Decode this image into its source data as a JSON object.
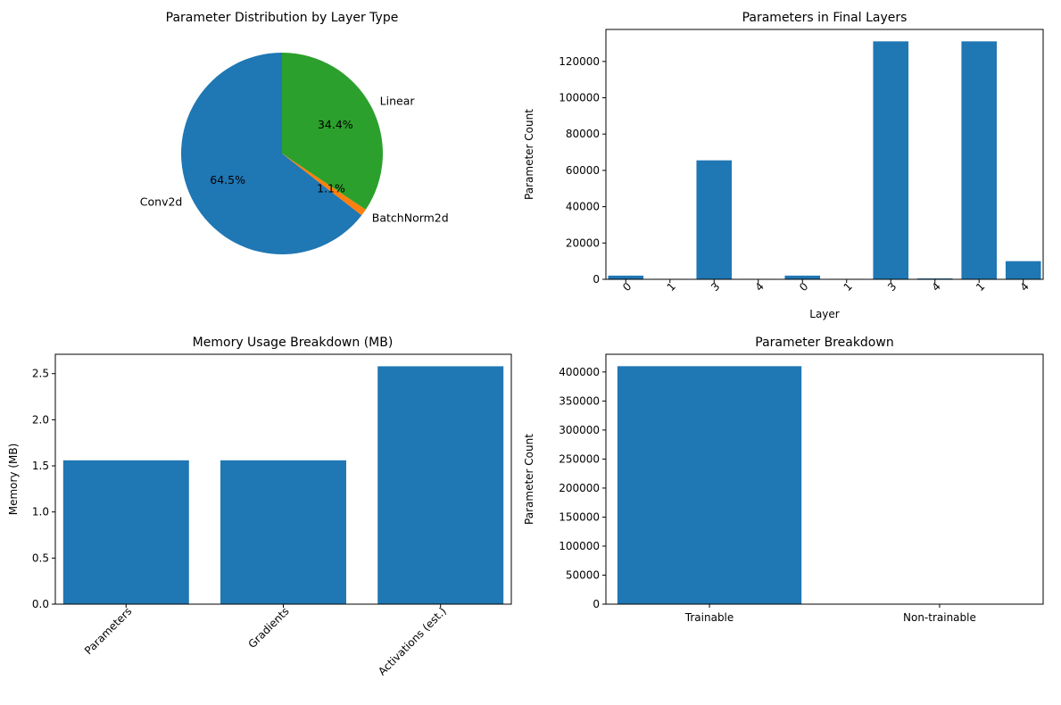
{
  "colors": {
    "blue": "#1f77b4",
    "orange": "#ff7f0e",
    "green": "#2ca02c"
  },
  "chart_data": [
    {
      "type": "pie",
      "title": "Parameter Distribution by Layer Type",
      "slices": [
        {
          "label": "Conv2d",
          "pct_label": "64.5%",
          "value": 64.5,
          "color": "#1f77b4"
        },
        {
          "label": "BatchNorm2d",
          "pct_label": "1.1%",
          "value": 1.1,
          "color": "#ff7f0e"
        },
        {
          "label": "Linear",
          "pct_label": "34.4%",
          "value": 34.4,
          "color": "#2ca02c"
        }
      ]
    },
    {
      "type": "bar",
      "title": "Parameters in Final Layers",
      "xlabel": "Layer",
      "ylabel": "Parameter Count",
      "categories": [
        "0",
        "1",
        "3",
        "4",
        "0",
        "1",
        "3",
        "4",
        "1",
        "4"
      ],
      "values": [
        2048,
        256,
        65536,
        256,
        2048,
        256,
        131072,
        512,
        131072,
        10000
      ],
      "ylim": [
        0,
        137630
      ],
      "yticks": [
        0,
        20000,
        40000,
        60000,
        80000,
        100000,
        120000
      ],
      "color": "#1f77b4"
    },
    {
      "type": "bar",
      "title": "Memory Usage Breakdown (MB)",
      "xlabel": "",
      "ylabel": "Memory (MB)",
      "categories": [
        "Parameters",
        "Gradients",
        "Activations (est.)"
      ],
      "values": [
        1.56,
        1.56,
        2.58
      ],
      "ylim": [
        0,
        2.71
      ],
      "yticks": [
        "0.0",
        "0.5",
        "1.0",
        "1.5",
        "2.0",
        "2.5"
      ],
      "color": "#1f77b4"
    },
    {
      "type": "bar",
      "title": "Parameter Breakdown",
      "xlabel": "",
      "ylabel": "Parameter Count",
      "categories": [
        "Trainable",
        "Non-trainable"
      ],
      "values": [
        410000,
        0
      ],
      "ylim": [
        0,
        430500
      ],
      "yticks": [
        0,
        50000,
        100000,
        150000,
        200000,
        250000,
        300000,
        350000,
        400000
      ],
      "color": "#1f77b4"
    }
  ]
}
